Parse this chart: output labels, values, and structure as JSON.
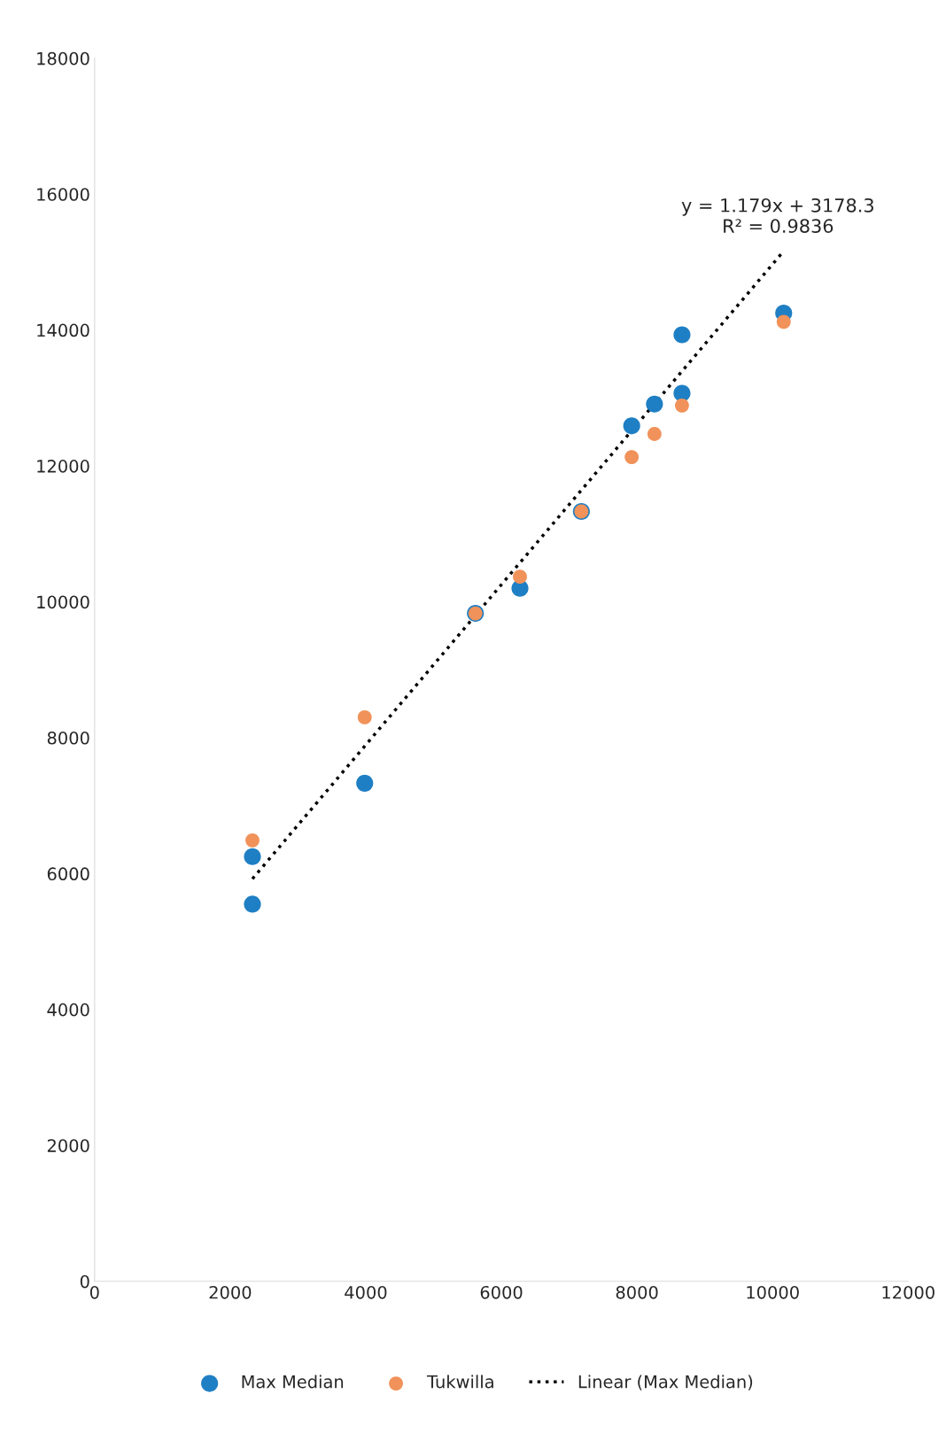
{
  "chart_data": {
    "type": "scatter",
    "x": [
      10164,
      8664,
      8664,
      8258,
      7922,
      7180,
      6274,
      5617,
      3984,
      2328,
      2328
    ],
    "series": [
      {
        "name": "Max Median",
        "color": "#1f7fc4",
        "values": [
          14250,
          13930,
          13070,
          12910,
          12590,
          11330,
          10200,
          9830,
          7330,
          6250,
          5550
        ]
      },
      {
        "name": "Tukwilla",
        "color": "#f0925a",
        "x": [
          10164,
          8664,
          8258,
          7922,
          7180,
          6274,
          5617,
          3984,
          2328
        ],
        "values": [
          14120,
          12890,
          12470,
          12130,
          11330,
          10370,
          9830,
          8300,
          6490
        ]
      },
      {
        "name": "Linear (Max Median)",
        "type": "line",
        "color": "#000000",
        "line_style": "dotted",
        "marker": "none",
        "x": [
          2328,
          10164
        ],
        "values": [
          5923,
          15162
        ]
      }
    ],
    "annotations": [
      "y = 1.179x + 3178.3",
      "R² = 0.9836"
    ],
    "xlim": [
      0,
      12000
    ],
    "xticks": [
      0,
      2000,
      4000,
      6000,
      8000,
      10000,
      12000
    ],
    "ylim": [
      0,
      18000
    ],
    "yticks": [
      0,
      2000,
      4000,
      6000,
      8000,
      10000,
      12000,
      14000,
      16000,
      18000
    ],
    "marker": "circle",
    "grid": false,
    "legend": "bottom"
  }
}
